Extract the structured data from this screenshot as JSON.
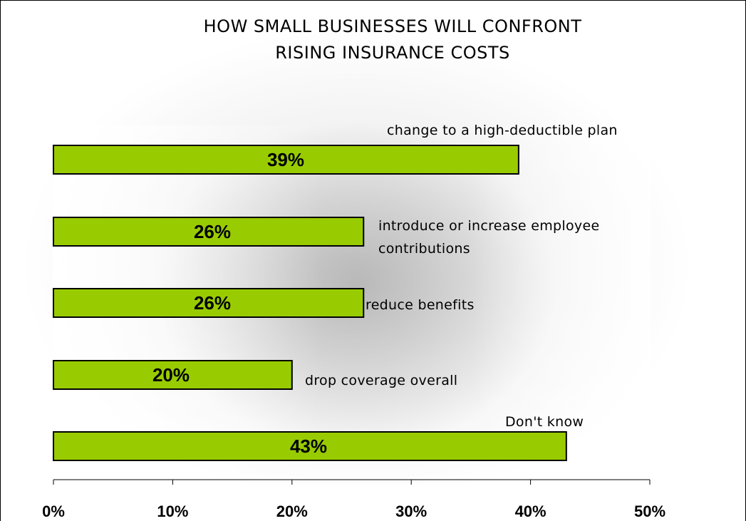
{
  "chart_data": {
    "type": "bar",
    "orientation": "horizontal",
    "title": [
      "HOW SMALL BUSINESSES WILL CONFRONT",
      "RISING INSURANCE COSTS"
    ],
    "categories": [
      [
        "change to a high-deductible plan"
      ],
      [
        "introduce or increase employee",
        "contributions"
      ],
      [
        "reduce benefits"
      ],
      [
        "drop coverage overall"
      ],
      [
        "Don't know"
      ]
    ],
    "values": [
      39,
      26,
      26,
      20,
      43
    ],
    "data_labels": [
      "39%",
      "26%",
      "26%",
      "20%",
      "43%"
    ],
    "xlim": [
      0,
      50
    ],
    "x_ticks": [
      0,
      10,
      20,
      30,
      40,
      50
    ],
    "x_tick_labels": [
      "0%",
      "10%",
      "20%",
      "30%",
      "40%",
      "50%"
    ],
    "xlabel": "",
    "ylabel": "",
    "grid": false,
    "legend": "none",
    "colors": {
      "bar_fill": "#99cc00",
      "bar_stroke": "#000000",
      "axis": "#000000"
    }
  }
}
